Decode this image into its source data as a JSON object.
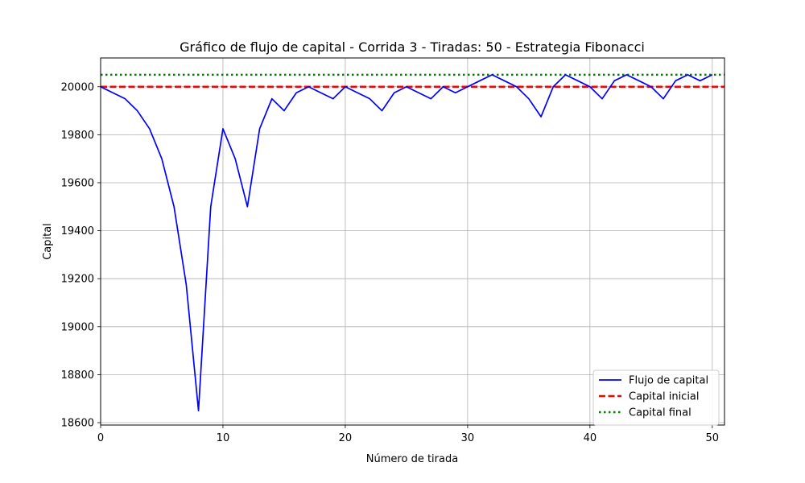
{
  "chart_data": {
    "type": "line",
    "title": "Gráfico de flujo de capital - Corrida 3 - Tiradas: 50 - Estrategia Fibonacci",
    "xlabel": "Número de tirada",
    "ylabel": "Capital",
    "xlim": [
      0,
      51
    ],
    "ylim": [
      18590,
      20120
    ],
    "xticks": [
      0,
      10,
      20,
      30,
      40,
      50
    ],
    "yticks": [
      18600,
      18800,
      19000,
      19200,
      19400,
      19600,
      19800,
      20000
    ],
    "grid": true,
    "legend_position": "lower-right",
    "series": [
      {
        "name": "Flujo de capital",
        "color": "#0000ff",
        "style": "solid",
        "x": [
          0,
          1,
          2,
          3,
          4,
          5,
          6,
          7,
          8,
          9,
          10,
          11,
          12,
          13,
          14,
          15,
          16,
          17,
          18,
          19,
          20,
          21,
          22,
          23,
          24,
          25,
          26,
          27,
          28,
          29,
          30,
          31,
          32,
          33,
          34,
          35,
          36,
          37,
          38,
          39,
          40,
          41,
          42,
          43,
          44,
          45,
          46,
          47,
          48,
          49,
          50
        ],
        "values": [
          20000,
          19975,
          19950,
          19900,
          19825,
          19700,
          19500,
          19175,
          18650,
          19500,
          19825,
          19700,
          19500,
          19825,
          19950,
          19900,
          19975,
          20000,
          19975,
          19950,
          20000,
          19975,
          19950,
          19900,
          19975,
          20000,
          19975,
          19950,
          20000,
          19975,
          20000,
          20025,
          20050,
          20025,
          20000,
          19950,
          19875,
          20000,
          20050,
          20025,
          20000,
          19950,
          20025,
          20050,
          20025,
          20000,
          19950,
          20025,
          20050,
          20025,
          20050
        ]
      },
      {
        "name": "Capital inicial",
        "color": "#ff0000",
        "style": "dashed",
        "value": 20000
      },
      {
        "name": "Capital final",
        "color": "#008000",
        "style": "dotted",
        "value": 20050
      }
    ]
  }
}
